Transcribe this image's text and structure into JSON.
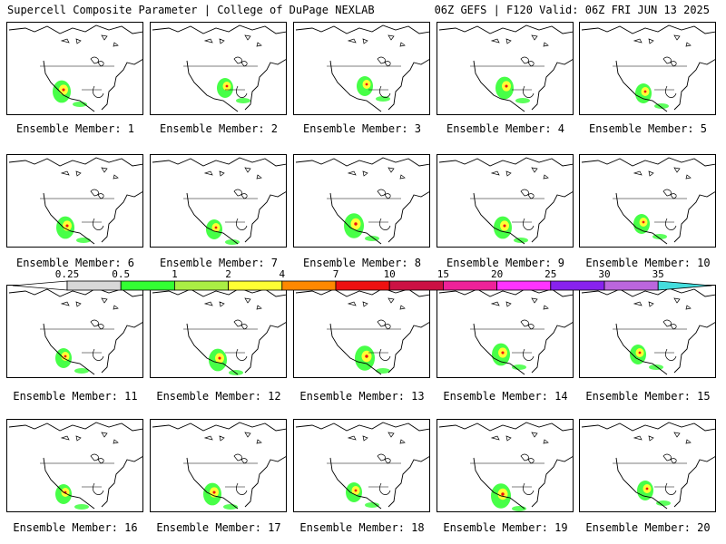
{
  "header": {
    "title": "Supercell Composite Parameter | College of DuPage NEXLAB",
    "run_info": "06Z GEFS | F120 Valid: 06Z FRI JUN 13 2025"
  },
  "members": [
    {
      "caption": "Ensemble Member: 1"
    },
    {
      "caption": "Ensemble Member: 2"
    },
    {
      "caption": "Ensemble Member: 3"
    },
    {
      "caption": "Ensemble Member: 4"
    },
    {
      "caption": "Ensemble Member: 5"
    },
    {
      "caption": "Ensemble Member: 6"
    },
    {
      "caption": "Ensemble Member: 7"
    },
    {
      "caption": "Ensemble Member: 8"
    },
    {
      "caption": "Ensemble Member: 9"
    },
    {
      "caption": "Ensemble Member: 10"
    },
    {
      "caption": "Ensemble Member: 11"
    },
    {
      "caption": "Ensemble Member: 12"
    },
    {
      "caption": "Ensemble Member: 13"
    },
    {
      "caption": "Ensemble Member: 14"
    },
    {
      "caption": "Ensemble Member: 15"
    },
    {
      "caption": "Ensemble Member: 16"
    },
    {
      "caption": "Ensemble Member: 17"
    },
    {
      "caption": "Ensemble Member: 18"
    },
    {
      "caption": "Ensemble Member: 19"
    },
    {
      "caption": "Ensemble Member: 20"
    }
  ],
  "colorbar": {
    "ticks": [
      "0.25",
      "0.5",
      "1",
      "2",
      "4",
      "7",
      "10",
      "15",
      "20",
      "25",
      "30",
      "35"
    ],
    "colors": [
      "#d8d8d8",
      "#33ff33",
      "#aaee44",
      "#ffff33",
      "#ff8800",
      "#ee1111",
      "#cc1144",
      "#ee2299",
      "#ff33ff",
      "#8822ee",
      "#bb66dd",
      "#44dddd"
    ]
  },
  "map_colors": {
    "land": "#ffffff",
    "coast": "#000000",
    "low": "#d8d8d8",
    "mid": "#33ff33",
    "high": "#ffff33",
    "peak": "#ee1111"
  }
}
